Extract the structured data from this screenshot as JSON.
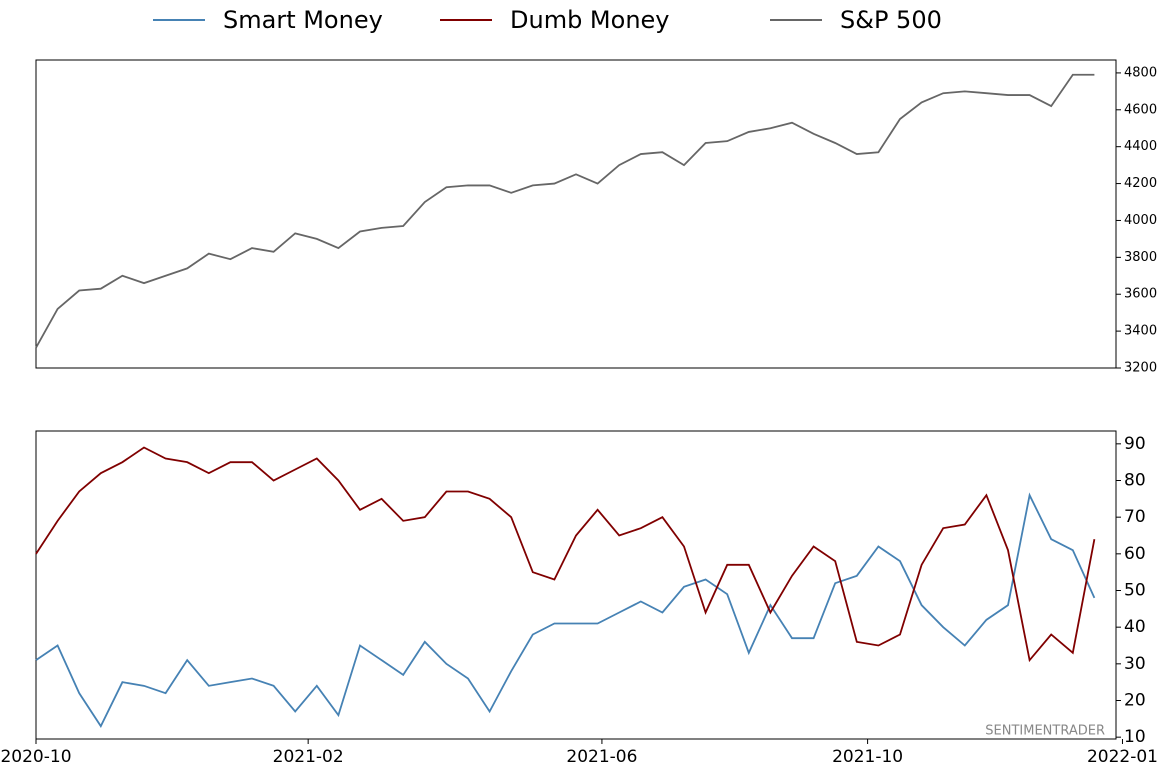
{
  "chart_data": [
    {
      "type": "line",
      "x": [
        0,
        2,
        4,
        6,
        8,
        10,
        12,
        14,
        16,
        18,
        20,
        22,
        24,
        26,
        28,
        30,
        32,
        34,
        36,
        38,
        40,
        42,
        44,
        46,
        48,
        50,
        52,
        54,
        56,
        58,
        60,
        62,
        64,
        66,
        68,
        70,
        72,
        74,
        76,
        78,
        80,
        82,
        84,
        86,
        88,
        90,
        92,
        94,
        96,
        98
      ],
      "xlim": [
        0,
        100
      ],
      "series": [
        {
          "name": "S&P 500",
          "color": "#666666",
          "values": [
            3310,
            3520,
            3620,
            3630,
            3700,
            3660,
            3700,
            3740,
            3820,
            3790,
            3850,
            3830,
            3930,
            3900,
            3850,
            3940,
            3960,
            3970,
            4100,
            4180,
            4190,
            4190,
            4150,
            4190,
            4200,
            4250,
            4200,
            4300,
            4360,
            4370,
            4300,
            4420,
            4430,
            4480,
            4500,
            4530,
            4470,
            4420,
            4360,
            4370,
            4550,
            4640,
            4690,
            4700,
            4690,
            4680,
            4680,
            4620,
            4790,
            4790
          ]
        }
      ],
      "ylim": [
        3200,
        4870
      ],
      "yticks": [
        3200,
        3400,
        3600,
        3800,
        4000,
        4200,
        4400,
        4600,
        4800
      ]
    },
    {
      "type": "line",
      "x": [
        0,
        2,
        4,
        6,
        8,
        10,
        12,
        14,
        16,
        18,
        20,
        22,
        24,
        26,
        28,
        30,
        32,
        34,
        36,
        38,
        40,
        42,
        44,
        46,
        48,
        50,
        52,
        54,
        56,
        58,
        60,
        62,
        64,
        66,
        68,
        70,
        72,
        74,
        76,
        78,
        80,
        82,
        84,
        86,
        88,
        90,
        92,
        94,
        96,
        98
      ],
      "xlim": [
        0,
        100
      ],
      "xticks": [
        {
          "value": 0,
          "label": "2020-10"
        },
        {
          "value": 25.2,
          "label": "2021-02"
        },
        {
          "value": 52.4,
          "label": "2021-06"
        },
        {
          "value": 77,
          "label": "2021-10"
        },
        {
          "value": 100.6,
          "label": "2022-01"
        }
      ],
      "series": [
        {
          "name": "Smart Money",
          "color": "#4682b4",
          "values": [
            31,
            35,
            22,
            13,
            25,
            24,
            22,
            31,
            24,
            25,
            26,
            24,
            17,
            24,
            16,
            35,
            31,
            27,
            36,
            30,
            26,
            17,
            28,
            38,
            41,
            41,
            41,
            44,
            47,
            44,
            51,
            53,
            49,
            33,
            46,
            37,
            37,
            52,
            54,
            62,
            58,
            46,
            40,
            35,
            42,
            46,
            76,
            64,
            61,
            48
          ]
        },
        {
          "name": "Dumb Money",
          "color": "#800000",
          "values": [
            60,
            69,
            77,
            82,
            85,
            89,
            86,
            85,
            82,
            85,
            85,
            80,
            83,
            86,
            80,
            72,
            75,
            69,
            70,
            77,
            77,
            75,
            70,
            55,
            53,
            65,
            72,
            65,
            67,
            70,
            62,
            44,
            57,
            57,
            44,
            54,
            62,
            58,
            36,
            35,
            38,
            57,
            67,
            68,
            76,
            61,
            31,
            38,
            33,
            64
          ]
        }
      ],
      "ylim": [
        9.5,
        93.5
      ],
      "yticks": [
        10,
        20,
        30,
        40,
        50,
        60,
        70,
        80,
        90
      ],
      "annotation": "SENTIMENTRADER"
    }
  ]
}
